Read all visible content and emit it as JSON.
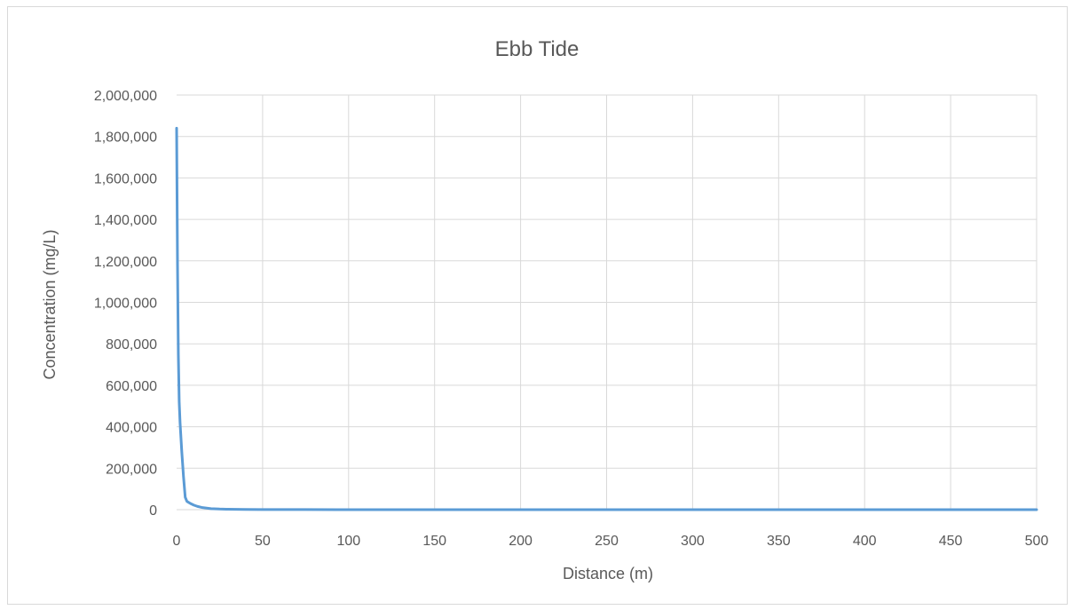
{
  "chart_data": {
    "type": "line",
    "title": "Ebb Tide",
    "xlabel": "Distance (m)",
    "ylabel": "Concentration (mg/L)",
    "xlim": [
      0,
      500
    ],
    "ylim": [
      0,
      2000000
    ],
    "x_ticks": [
      "0",
      "50",
      "100",
      "150",
      "200",
      "250",
      "300",
      "350",
      "400",
      "450",
      "500"
    ],
    "y_ticks": [
      "0",
      "200,000",
      "400,000",
      "600,000",
      "800,000",
      "1,000,000",
      "1,200,000",
      "1,400,000",
      "1,600,000",
      "1,800,000",
      "2,000,000"
    ],
    "grid": true,
    "line_color": "#5b9bd5",
    "grid_color": "#d9d9d9",
    "series": [
      {
        "x": [
          0,
          0.5,
          1,
          1.5,
          2,
          3,
          4,
          5,
          6,
          8,
          10,
          12,
          15,
          20,
          25,
          30,
          40,
          50,
          75,
          100,
          150,
          200,
          250,
          300,
          350,
          400,
          450,
          500
        ],
        "y": [
          1840000,
          1200000,
          750000,
          520000,
          420000,
          280000,
          160000,
          60000,
          40000,
          30000,
          22000,
          16000,
          10000,
          5000,
          3000,
          2000,
          1000,
          600,
          300,
          150,
          80,
          50,
          30,
          20,
          15,
          10,
          8,
          5
        ]
      }
    ]
  }
}
